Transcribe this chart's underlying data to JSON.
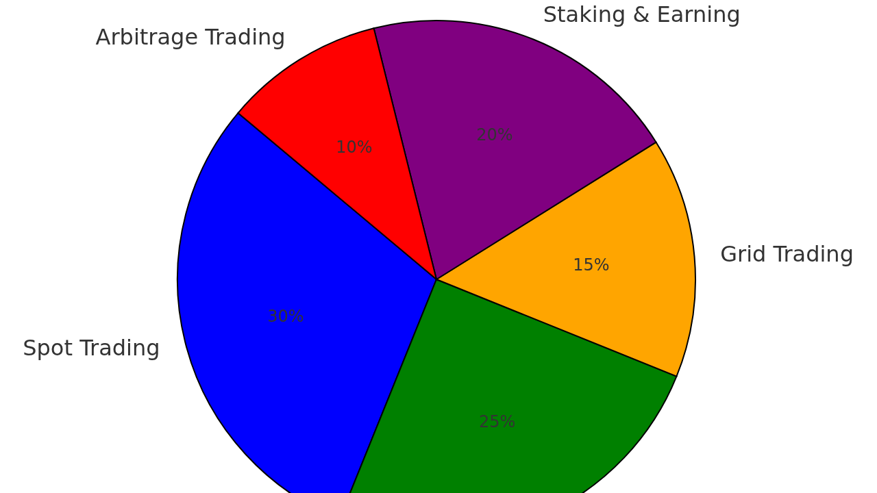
{
  "chart_data": {
    "type": "pie",
    "categories": [
      "Spot Trading",
      null,
      "Grid Trading",
      "Staking & Earning",
      "Arbitrage Trading"
    ],
    "values": [
      30,
      25,
      15,
      20,
      10
    ],
    "value_labels": [
      "30%",
      "25%",
      "15%",
      "20%",
      "10%"
    ],
    "colors": [
      "#0000ff",
      "#008000",
      "#ffa500",
      "#800080",
      "#ff0000"
    ]
  }
}
